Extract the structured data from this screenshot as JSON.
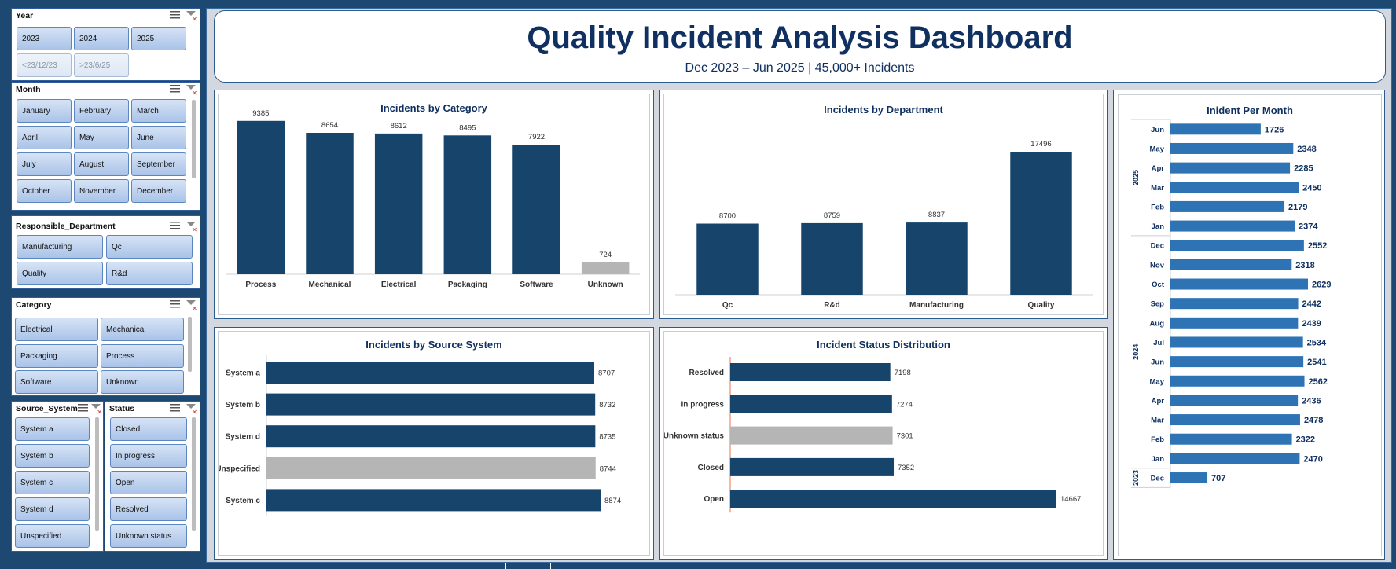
{
  "slicers": {
    "year": {
      "title": "Year",
      "items": [
        "2023",
        "2024",
        "2025",
        "<23/12/23",
        ">23/6/25"
      ]
    },
    "month": {
      "title": "Month",
      "items": [
        "January",
        "February",
        "March",
        "April",
        "May",
        "June",
        "July",
        "August",
        "September",
        "October",
        "November",
        "December"
      ]
    },
    "department": {
      "title": "Responsible_Department",
      "items": [
        "Manufacturing",
        "Qc",
        "Quality",
        "R&d"
      ]
    },
    "category": {
      "title": "Category",
      "items": [
        "Electrical",
        "Mechanical",
        "Packaging",
        "Process",
        "Software",
        "Unknown"
      ]
    },
    "source": {
      "title": "Source_System",
      "items": [
        "System a",
        "System b",
        "System c",
        "System d",
        "Unspecified"
      ]
    },
    "status": {
      "title": "Status",
      "items": [
        "Closed",
        "In progress",
        "Open",
        "Resolved",
        "Unknown status"
      ]
    }
  },
  "header": {
    "title": "Quality Incident Analysis Dashboard",
    "subtitle": "Dec 2023 – Jun 2025 | 45,000+ Incidents"
  },
  "colors": {
    "bar": "#17446b",
    "grey": "#b5b5b5",
    "bar_light": "#2e74b5",
    "title": "#0f3060"
  },
  "chart_data": [
    {
      "id": "category",
      "type": "bar",
      "title": "Incidents by Category",
      "categories": [
        "Process",
        "Mechanical",
        "Electrical",
        "Packaging",
        "Software",
        "Unknown"
      ],
      "values": [
        9385,
        8654,
        8612,
        8495,
        7922,
        724
      ],
      "highlight": [
        "Unknown"
      ],
      "ylim": [
        0,
        10000
      ]
    },
    {
      "id": "department",
      "type": "bar",
      "title": "Incidents by Department",
      "categories": [
        "Qc",
        "R&d",
        "Manufacturing",
        "Quality"
      ],
      "values": [
        8700,
        8759,
        8837,
        17496
      ],
      "ylim": [
        0,
        20000
      ]
    },
    {
      "id": "source",
      "type": "bar",
      "orientation": "horizontal",
      "title": "Incidents by Source System",
      "categories": [
        "System a",
        "System b",
        "System d",
        "Unspecified",
        "System c"
      ],
      "values": [
        8707,
        8732,
        8735,
        8744,
        8874
      ],
      "highlight": [
        "Unspecified"
      ]
    },
    {
      "id": "status",
      "type": "bar",
      "orientation": "horizontal",
      "title": "Incident Status Distribution",
      "categories": [
        "Resolved",
        "In progress",
        "Unknown status",
        "Closed",
        "Open"
      ],
      "values": [
        7198,
        7274,
        7301,
        7352,
        14667
      ],
      "highlight": [
        "Unknown status"
      ]
    },
    {
      "id": "month",
      "type": "bar",
      "orientation": "horizontal",
      "title": "Inident Per Month",
      "groups": [
        {
          "year": "2025",
          "months": [
            "Jun",
            "May",
            "Apr",
            "Mar",
            "Feb",
            "Jan"
          ],
          "values": [
            1726,
            2348,
            2285,
            2450,
            2179,
            2374
          ]
        },
        {
          "year": "2024",
          "months": [
            "Dec",
            "Nov",
            "Oct",
            "Sep",
            "Aug",
            "Jul",
            "Jun",
            "May",
            "Apr",
            "Mar",
            "Feb",
            "Jan"
          ],
          "values": [
            2552,
            2318,
            2629,
            2442,
            2439,
            2534,
            2541,
            2562,
            2436,
            2478,
            2322,
            2470
          ]
        },
        {
          "year": "2023",
          "months": [
            "Dec"
          ],
          "values": [
            707
          ]
        }
      ]
    }
  ]
}
